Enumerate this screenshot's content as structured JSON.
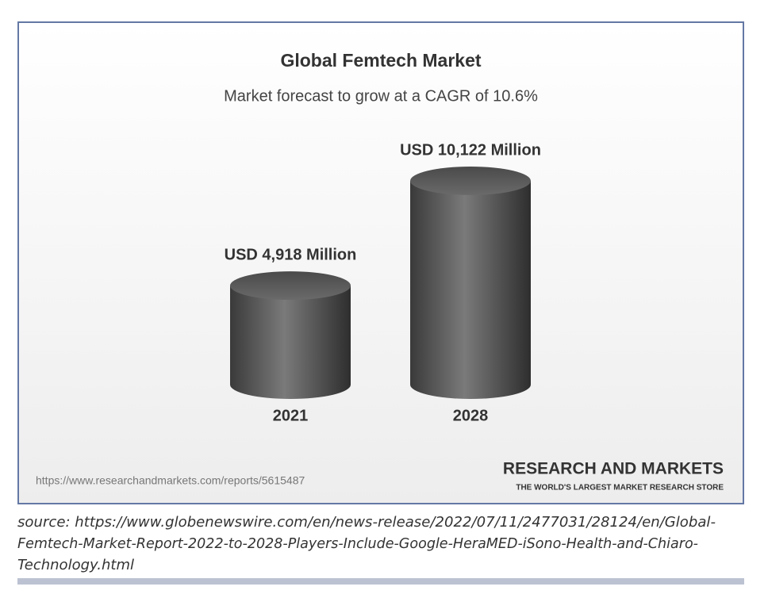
{
  "chart_data": {
    "type": "bar",
    "title": "Global Femtech Market",
    "subtitle": "Market forecast to grow at a CAGR of 10.6%",
    "categories": [
      "2021",
      "2028"
    ],
    "values": [
      4918,
      10122
    ],
    "value_labels": [
      "USD 4,918 Million",
      "USD 10,122 Million"
    ],
    "color": "#5e5e5e",
    "url": "https://www.researchandmarkets.com/reports/5615487",
    "brand": "RESEARCH AND MARKETS",
    "tagline": "THE WORLD'S LARGEST MARKET RESEARCH STORE"
  },
  "caption_lines": [
    "source: https://www.globenewswire.com/en/news-release/2022/07/11/2477031/28124/en/Global-",
    "Femtech-Market-Report-2022-to-2028-Players-Include-Google-HeraMED-iSono-Health-and-Chiaro-",
    "Technology.html"
  ]
}
